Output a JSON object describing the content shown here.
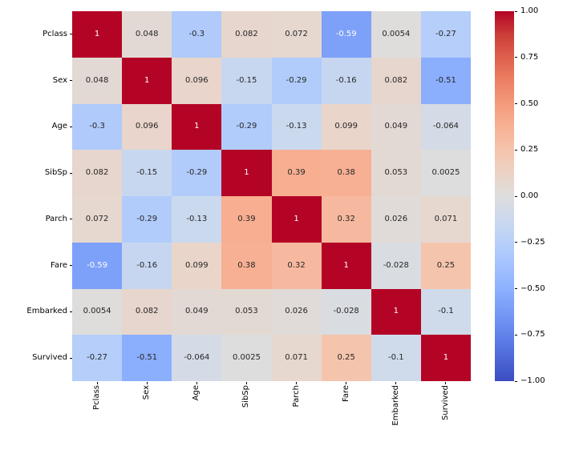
{
  "figure": {
    "background": "#ffffff"
  },
  "chart_data": {
    "type": "heatmap",
    "title": "",
    "xlabel": "",
    "ylabel": "",
    "categories": [
      "Pclass",
      "Sex",
      "Age",
      "SibSp",
      "Parch",
      "Fare",
      "Embarked",
      "Survived"
    ],
    "matrix": [
      [
        1,
        0.048,
        -0.3,
        0.082,
        0.072,
        -0.59,
        0.0054,
        -0.27
      ],
      [
        0.048,
        1,
        0.096,
        -0.15,
        -0.29,
        -0.16,
        0.082,
        -0.51
      ],
      [
        -0.3,
        0.096,
        1,
        -0.29,
        -0.13,
        0.099,
        0.049,
        -0.064
      ],
      [
        0.082,
        -0.15,
        -0.29,
        1,
        0.39,
        0.38,
        0.053,
        0.0025
      ],
      [
        0.072,
        -0.29,
        -0.13,
        0.39,
        1,
        0.32,
        0.026,
        0.071
      ],
      [
        -0.59,
        -0.16,
        0.099,
        0.38,
        0.32,
        1,
        -0.028,
        0.25
      ],
      [
        0.0054,
        0.082,
        0.049,
        0.053,
        0.026,
        -0.028,
        1,
        -0.1
      ],
      [
        -0.27,
        -0.51,
        -0.064,
        0.0025,
        0.071,
        0.25,
        -0.1,
        1
      ]
    ],
    "cell_labels": [
      [
        "1",
        "0.048",
        "-0.3",
        "0.082",
        "0.072",
        "-0.59",
        "0.0054",
        "-0.27"
      ],
      [
        "0.048",
        "1",
        "0.096",
        "-0.15",
        "-0.29",
        "-0.16",
        "0.082",
        "-0.51"
      ],
      [
        "-0.3",
        "0.096",
        "1",
        "-0.29",
        "-0.13",
        "0.099",
        "0.049",
        "-0.064"
      ],
      [
        "0.082",
        "-0.15",
        "-0.29",
        "1",
        "0.39",
        "0.38",
        "0.053",
        "0.0025"
      ],
      [
        "0.072",
        "-0.29",
        "-0.13",
        "0.39",
        "1",
        "0.32",
        "0.026",
        "0.071"
      ],
      [
        "-0.59",
        "-0.16",
        "0.099",
        "0.38",
        "0.32",
        "1",
        "-0.028",
        "0.25"
      ],
      [
        "0.0054",
        "0.082",
        "0.049",
        "0.053",
        "0.026",
        "-0.028",
        "1",
        "-0.1"
      ],
      [
        "-0.27",
        "-0.51",
        "-0.064",
        "0.0025",
        "0.071",
        "0.25",
        "-0.1",
        "1"
      ]
    ],
    "vmin": -1,
    "vmax": 1,
    "colormap_name": "coolwarm",
    "colormap_anchors": [
      "#3b4cc0",
      "#4d68d7",
      "#6282ea",
      "#779af7",
      "#8db0fe",
      "#a3c2ff",
      "#b8d0f9",
      "#ccd9ee",
      "#dddddd",
      "#ecd3c5",
      "#f5c4ad",
      "#f7b194",
      "#f49a7b",
      "#ec7f63",
      "#de604d",
      "#cb3e38",
      "#b40426"
    ],
    "colorbar_ticks": [
      {
        "value": 1.0,
        "label": "1.00"
      },
      {
        "value": 0.75,
        "label": "0.75"
      },
      {
        "value": 0.5,
        "label": "0.50"
      },
      {
        "value": 0.25,
        "label": "0.25"
      },
      {
        "value": 0.0,
        "label": "0.00"
      },
      {
        "value": -0.25,
        "label": "−0.25"
      },
      {
        "value": -0.5,
        "label": "−0.50"
      },
      {
        "value": -0.75,
        "label": "−0.75"
      },
      {
        "value": -1.0,
        "label": "−1.00"
      }
    ],
    "legend_position": "right",
    "grid": false,
    "annotation_text_dark": "#262626",
    "annotation_text_light": "#ffffff",
    "tick_color": "#000000"
  }
}
